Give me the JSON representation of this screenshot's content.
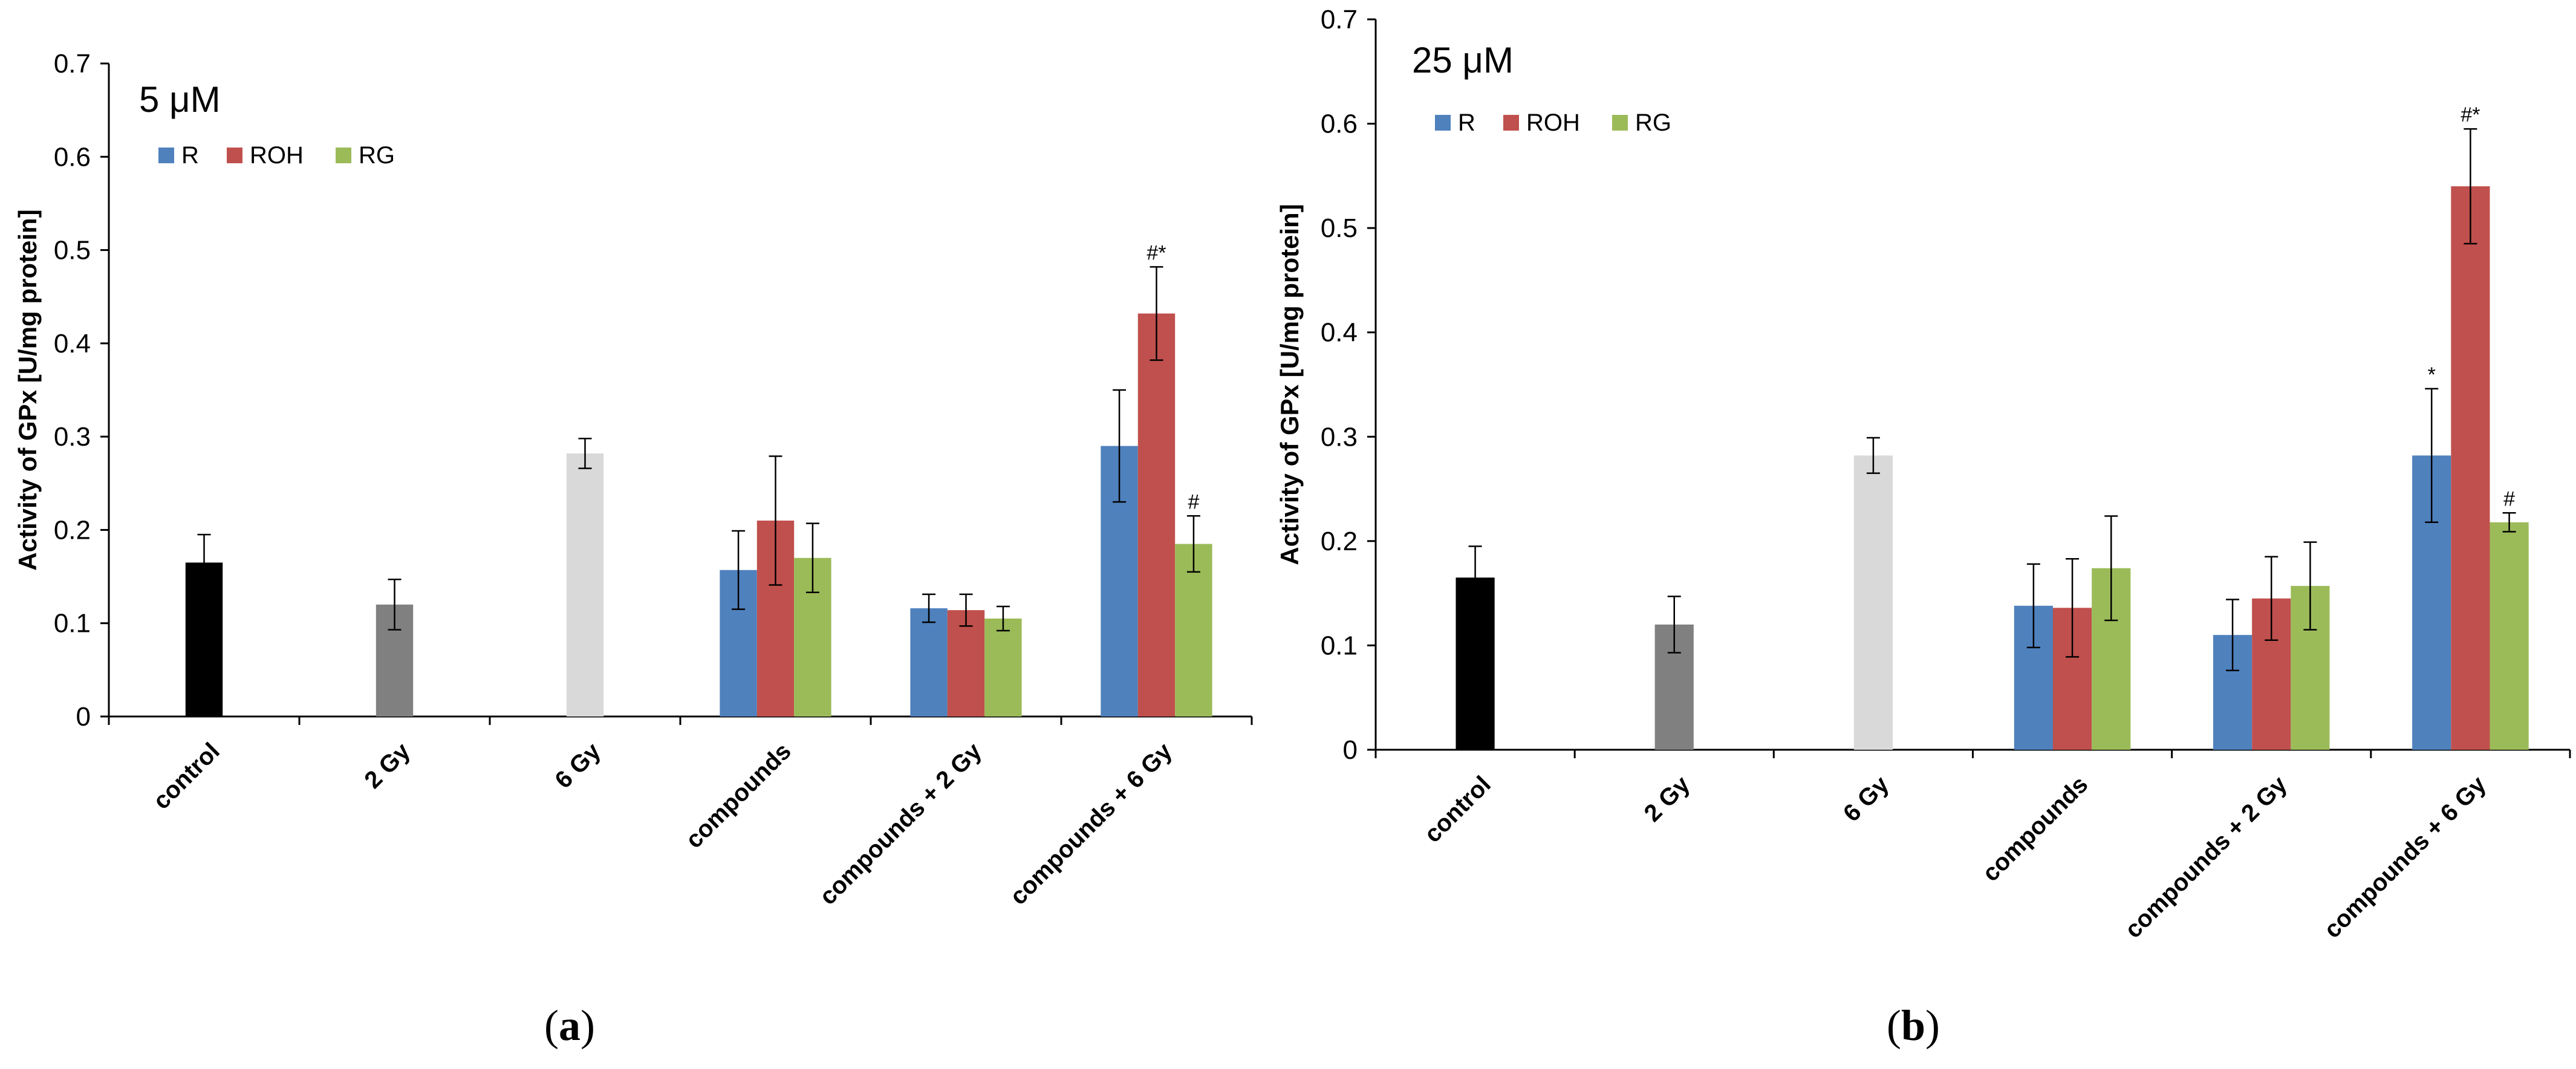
{
  "figure": {
    "captions": [
      "(a)",
      "(b)"
    ],
    "caption_letters": [
      "a",
      "b"
    ]
  },
  "colors": {
    "control": "#000000",
    "gy2": "#808080",
    "gy6": "#d9d9d9",
    "R": "#4f81bd",
    "ROH": "#c0504d",
    "RG": "#9bbb59",
    "axis": "#000000",
    "tick_text": "#000000"
  },
  "chart_data": [
    {
      "type": "bar",
      "title": "5 μM",
      "ylabel": "Activity of GPx [U/mg protein]",
      "xlabel": "",
      "ylim": [
        0,
        0.7
      ],
      "yticks": [
        0,
        0.1,
        0.2,
        0.3,
        0.4,
        0.5,
        0.6,
        0.7
      ],
      "ytick_labels": [
        "0",
        "0.1",
        "0.2",
        "0.3",
        "0.4",
        "0.5",
        "0.6",
        "0.7"
      ],
      "grid": false,
      "legend": {
        "position": "top-left",
        "entries": [
          "R",
          "ROH",
          "RG"
        ]
      },
      "categories": [
        "control",
        "2 Gy",
        "6 Gy",
        "compounds",
        "compounds + 2 Gy",
        "compounds + 6 Gy"
      ],
      "groups": [
        {
          "category": "control",
          "bars": [
            {
              "series": "control",
              "value": 0.165,
              "error": 0.03,
              "annotation": ""
            }
          ]
        },
        {
          "category": "2 Gy",
          "bars": [
            {
              "series": "2 Gy",
              "value": 0.12,
              "error": 0.027,
              "annotation": ""
            }
          ]
        },
        {
          "category": "6 Gy",
          "bars": [
            {
              "series": "6 Gy",
              "value": 0.282,
              "error": 0.016,
              "annotation": ""
            }
          ]
        },
        {
          "category": "compounds",
          "bars": [
            {
              "series": "R",
              "value": 0.157,
              "error": 0.042,
              "annotation": ""
            },
            {
              "series": "ROH",
              "value": 0.21,
              "error": 0.069,
              "annotation": ""
            },
            {
              "series": "RG",
              "value": 0.17,
              "error": 0.037,
              "annotation": ""
            }
          ]
        },
        {
          "category": "compounds + 2 Gy",
          "bars": [
            {
              "series": "R",
              "value": 0.116,
              "error": 0.015,
              "annotation": ""
            },
            {
              "series": "ROH",
              "value": 0.114,
              "error": 0.017,
              "annotation": ""
            },
            {
              "series": "RG",
              "value": 0.105,
              "error": 0.013,
              "annotation": ""
            }
          ]
        },
        {
          "category": "compounds + 6 Gy",
          "bars": [
            {
              "series": "R",
              "value": 0.29,
              "error": 0.06,
              "annotation": ""
            },
            {
              "series": "ROH",
              "value": 0.432,
              "error": 0.05,
              "annotation": "#*"
            },
            {
              "series": "RG",
              "value": 0.185,
              "error": 0.03,
              "annotation": "#"
            }
          ]
        }
      ]
    },
    {
      "type": "bar",
      "title": "25 μM",
      "ylabel": "Activity of GPx [U/mg protein]",
      "xlabel": "",
      "ylim": [
        0,
        0.7
      ],
      "yticks": [
        0,
        0.1,
        0.2,
        0.3,
        0.4,
        0.5,
        0.6,
        0.7
      ],
      "ytick_labels": [
        "0",
        "0.1",
        "0.2",
        "0.3",
        "0.4",
        "0.5",
        "0.6",
        "0.7"
      ],
      "grid": false,
      "legend": {
        "position": "top-left",
        "entries": [
          "R",
          "ROH",
          "RG"
        ]
      },
      "categories": [
        "control",
        "2 Gy",
        "6 Gy",
        "compounds",
        "compounds + 2 Gy",
        "compounds + 6 Gy"
      ],
      "groups": [
        {
          "category": "control",
          "bars": [
            {
              "series": "control",
              "value": 0.165,
              "error": 0.03,
              "annotation": ""
            }
          ]
        },
        {
          "category": "2 Gy",
          "bars": [
            {
              "series": "2 Gy",
              "value": 0.12,
              "error": 0.027,
              "annotation": ""
            }
          ]
        },
        {
          "category": "6 Gy",
          "bars": [
            {
              "series": "6 Gy",
              "value": 0.282,
              "error": 0.017,
              "annotation": ""
            }
          ]
        },
        {
          "category": "compounds",
          "bars": [
            {
              "series": "R",
              "value": 0.138,
              "error": 0.04,
              "annotation": ""
            },
            {
              "series": "ROH",
              "value": 0.136,
              "error": 0.047,
              "annotation": ""
            },
            {
              "series": "RG",
              "value": 0.174,
              "error": 0.05,
              "annotation": ""
            }
          ]
        },
        {
          "category": "compounds + 2 Gy",
          "bars": [
            {
              "series": "R",
              "value": 0.11,
              "error": 0.034,
              "annotation": ""
            },
            {
              "series": "ROH",
              "value": 0.145,
              "error": 0.04,
              "annotation": ""
            },
            {
              "series": "RG",
              "value": 0.157,
              "error": 0.042,
              "annotation": ""
            }
          ]
        },
        {
          "category": "compounds + 6 Gy",
          "bars": [
            {
              "series": "R",
              "value": 0.282,
              "error": 0.064,
              "annotation": "*"
            },
            {
              "series": "ROH",
              "value": 0.54,
              "error": 0.055,
              "annotation": "#*"
            },
            {
              "series": "RG",
              "value": 0.218,
              "error": 0.009,
              "annotation": "#"
            }
          ]
        }
      ]
    }
  ]
}
